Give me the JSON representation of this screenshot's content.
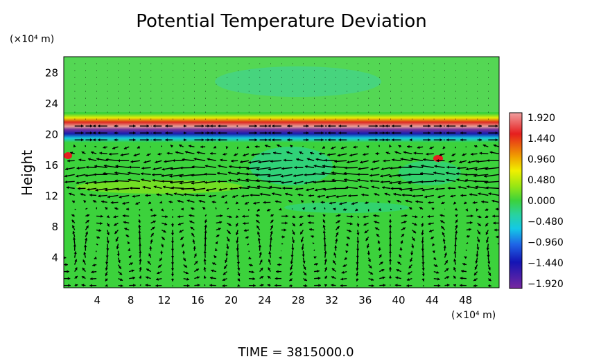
{
  "chart_data": {
    "type": "heatmap",
    "title": "Potential Temperature Deviation",
    "ylabel": "Height",
    "y_unit": "(×10⁴ m)",
    "x_unit": "(×10⁴ m)",
    "xlim": [
      0,
      52
    ],
    "ylim": [
      0,
      30
    ],
    "x_ticks": [
      4,
      8,
      12,
      16,
      20,
      24,
      28,
      32,
      36,
      40,
      44,
      48
    ],
    "y_ticks": [
      4,
      8,
      12,
      16,
      20,
      24,
      28
    ],
    "colorbar": {
      "ticks": [
        "1.920",
        "1.440",
        "0.960",
        "0.480",
        "0.000",
        "−0.480",
        "−0.960",
        "−1.440",
        "−1.920"
      ],
      "min": -1.92,
      "max": 1.92
    },
    "overlay": "wind vector arrows",
    "footer": "TIME  =  3815000.0"
  }
}
